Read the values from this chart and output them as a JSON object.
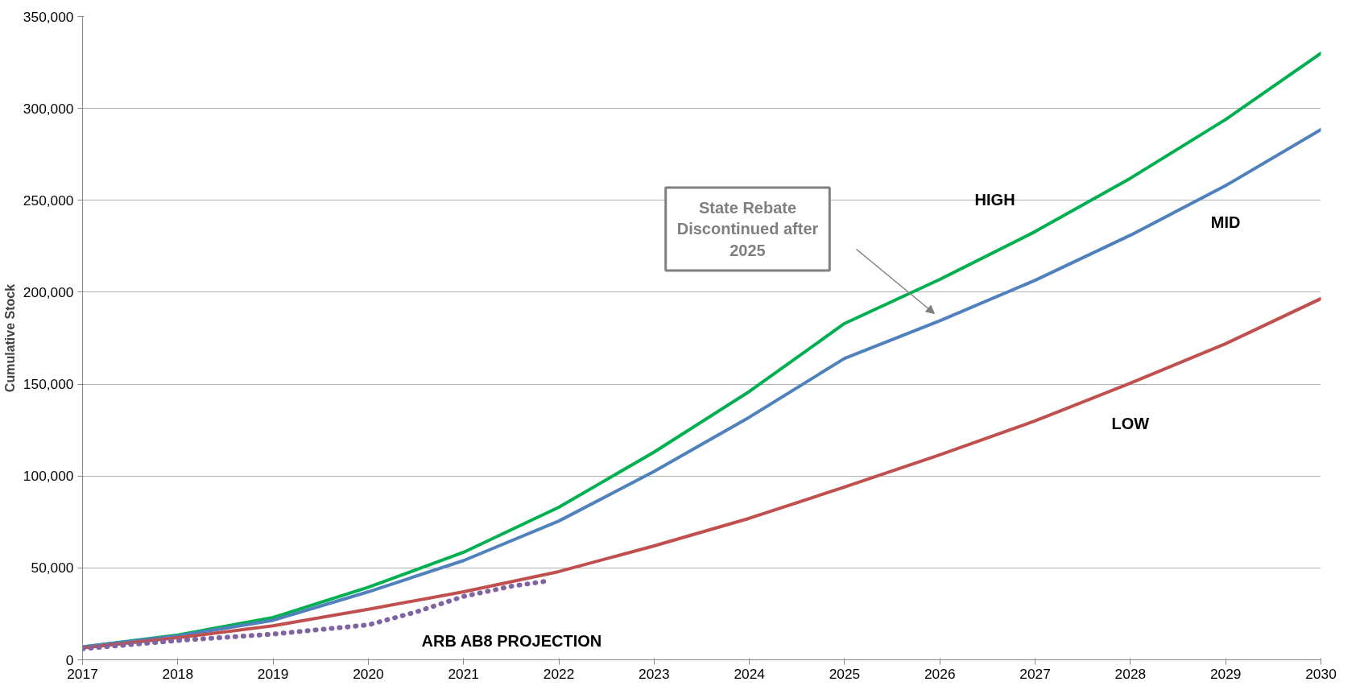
{
  "chart_data": {
    "type": "line",
    "ylabel": "Cumulative Stock",
    "x": [
      2017,
      2018,
      2019,
      2020,
      2021,
      2022,
      2023,
      2024,
      2025,
      2026,
      2027,
      2028,
      2029,
      2030
    ],
    "series": [
      {
        "name": "HIGH",
        "color": "#00b050",
        "values": [
          7000,
          13500,
          23000,
          39500,
          58500,
          83000,
          113000,
          146000,
          183000,
          207000,
          233000,
          262000,
          294000,
          330000
        ]
      },
      {
        "name": "MID",
        "color": "#4f81bd",
        "values": [
          7000,
          13000,
          21500,
          37000,
          54000,
          75500,
          102500,
          132000,
          164000,
          184500,
          206500,
          231000,
          258000,
          288500
        ]
      },
      {
        "name": "LOW",
        "color": "#c0504d",
        "values": [
          6500,
          12000,
          18500,
          27500,
          37000,
          48000,
          62000,
          77000,
          94000,
          111500,
          130000,
          150500,
          172000,
          196500
        ]
      },
      {
        "name": "ARB AB8 PROJECTION",
        "color": "#8064a2",
        "line_style": "dotted",
        "x": [
          2017,
          2018,
          2019,
          2020,
          2020.5,
          2021,
          2021.5,
          2021.9
        ],
        "values": [
          6000,
          10500,
          14000,
          19000,
          26000,
          34500,
          40000,
          43000
        ]
      }
    ],
    "annotations": [
      "State Rebate\nDiscontinued after\n2025"
    ],
    "xlim": [
      2017,
      2030
    ],
    "xticks": [
      2017,
      2018,
      2019,
      2020,
      2021,
      2022,
      2023,
      2024,
      2025,
      2026,
      2027,
      2028,
      2029,
      2030
    ],
    "ylim": [
      0,
      350000
    ],
    "yticks": [
      {
        "value": 0,
        "label": "0"
      },
      {
        "value": 50000,
        "label": "50,000"
      },
      {
        "value": 100000,
        "label": "100,000"
      },
      {
        "value": 150000,
        "label": "150,000"
      },
      {
        "value": 200000,
        "label": "200,000"
      },
      {
        "value": 250000,
        "label": "250,000"
      },
      {
        "value": 300000,
        "label": "300,000"
      },
      {
        "value": 350000,
        "label": "350,000"
      }
    ],
    "grid": "y",
    "legend": false,
    "marker": "none",
    "line_style": "solid"
  }
}
